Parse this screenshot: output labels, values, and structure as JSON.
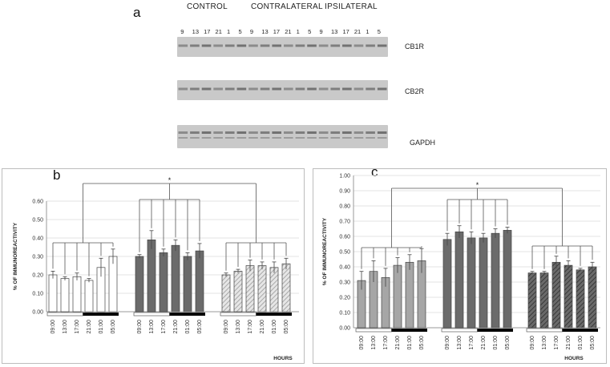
{
  "panel_a": {
    "letter": "a",
    "groups": [
      "CONTROL",
      "CONTRALATERAL",
      "IPSILATERAL"
    ],
    "lane_labels": [
      "9",
      "13",
      "17",
      "21",
      "1",
      "5",
      "9",
      "13",
      "17",
      "21",
      "1",
      "5",
      "9",
      "13",
      "17",
      "21",
      "1",
      "5"
    ],
    "bands": [
      "CB1R",
      "CB2R",
      "GAPDH"
    ]
  },
  "chart_data": [
    {
      "type": "bar",
      "panel_letter": "b",
      "ylabel": "% OF IMMUNOREACTIVITY",
      "xlabel": "HOURS",
      "ylim": [
        0,
        0.6
      ],
      "yticks": [
        "0.00",
        "0.10",
        "0.20",
        "0.30",
        "0.40",
        "0.50",
        "0.60"
      ],
      "categories": [
        "09:00",
        "13:00",
        "17:00",
        "21:00",
        "01:00",
        "05:00"
      ],
      "significance_marker": "*",
      "series": [
        {
          "values": [
            0.2,
            0.18,
            0.19,
            0.17,
            0.24,
            0.3
          ],
          "errors": [
            0.02,
            0.01,
            0.02,
            0.01,
            0.05,
            0.04
          ],
          "fill": "#ffffff",
          "pattern": "solid"
        },
        {
          "values": [
            0.3,
            0.39,
            0.32,
            0.36,
            0.3,
            0.33
          ],
          "errors": [
            0.01,
            0.05,
            0.02,
            0.03,
            0.02,
            0.04
          ],
          "fill": "#6b6b6b",
          "pattern": "solid"
        },
        {
          "values": [
            0.2,
            0.22,
            0.25,
            0.25,
            0.24,
            0.26
          ],
          "errors": [
            0.01,
            0.01,
            0.03,
            0.02,
            0.03,
            0.03
          ],
          "fill": "#cfcfcf",
          "pattern": "hatched"
        }
      ]
    },
    {
      "type": "bar",
      "panel_letter": "c",
      "ylabel": "% OF IMMUNOREACTIVITY",
      "xlabel": "HOURS",
      "ylim": [
        0,
        1.0
      ],
      "yticks": [
        "0.00",
        "0.10",
        "0.20",
        "0.30",
        "0.40",
        "0.50",
        "0.60",
        "0.70",
        "0.80",
        "0.90",
        "1.00"
      ],
      "categories": [
        "09:00",
        "13:00",
        "17:00",
        "21:00",
        "01:00",
        "05:00"
      ],
      "significance_marker": "*",
      "series": [
        {
          "values": [
            0.31,
            0.37,
            0.33,
            0.41,
            0.43,
            0.44
          ],
          "errors": [
            0.06,
            0.07,
            0.06,
            0.05,
            0.05,
            0.08
          ],
          "fill": "#a6a6a6",
          "pattern": "solid"
        },
        {
          "values": [
            0.58,
            0.63,
            0.59,
            0.59,
            0.62,
            0.64
          ],
          "errors": [
            0.04,
            0.04,
            0.04,
            0.03,
            0.03,
            0.02
          ],
          "fill": "#6b6b6b",
          "pattern": "solid"
        },
        {
          "values": [
            0.36,
            0.36,
            0.43,
            0.41,
            0.38,
            0.4
          ],
          "errors": [
            0.01,
            0.01,
            0.04,
            0.03,
            0.01,
            0.03
          ],
          "fill": "#555555",
          "pattern": "hatched"
        }
      ]
    }
  ]
}
